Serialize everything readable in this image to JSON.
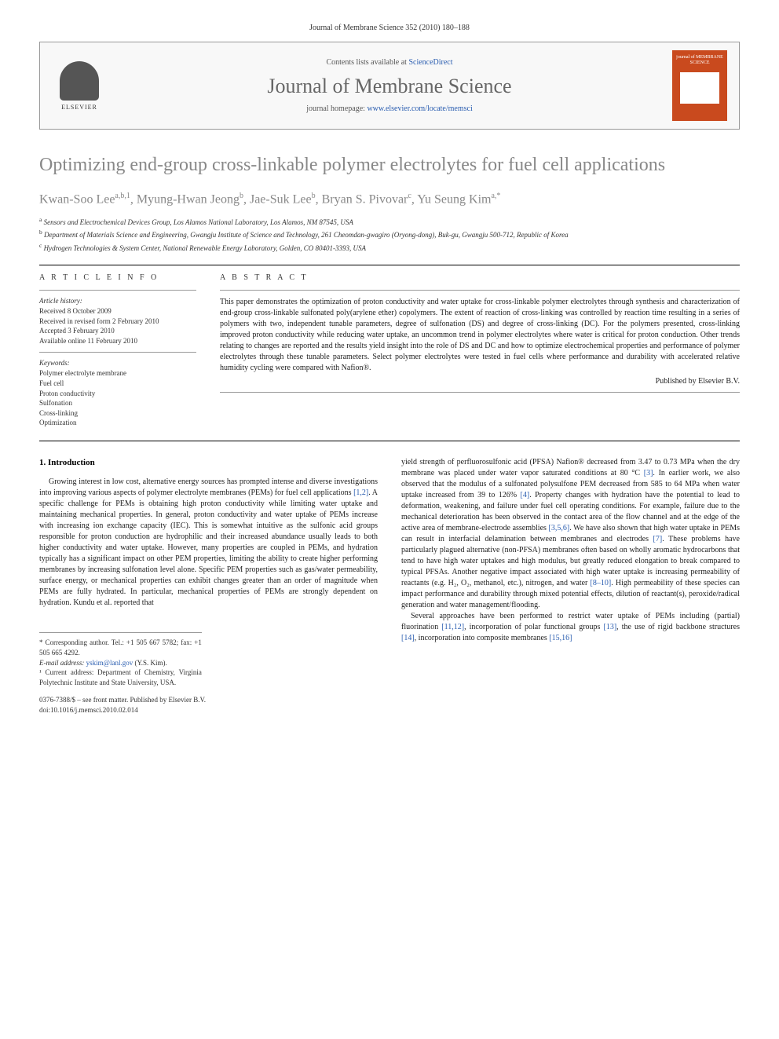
{
  "journal_header": "Journal of Membrane Science 352 (2010) 180–188",
  "header_box": {
    "contents_prefix": "Contents lists available at ",
    "contents_link": "ScienceDirect",
    "journal_title": "Journal of Membrane Science",
    "homepage_prefix": "journal homepage: ",
    "homepage_link": "www.elsevier.com/locate/memsci",
    "elsevier_label": "ELSEVIER",
    "cover_label": "journal of MEMBRANE SCIENCE"
  },
  "article": {
    "title": "Optimizing end-group cross-linkable polymer electrolytes for fuel cell applications",
    "authors_html": "Kwan-Soo Lee",
    "authors": [
      {
        "name": "Kwan-Soo Lee",
        "sup": "a,b,1"
      },
      {
        "name": "Myung-Hwan Jeong",
        "sup": "b"
      },
      {
        "name": "Jae-Suk Lee",
        "sup": "b"
      },
      {
        "name": "Bryan S. Pivovar",
        "sup": "c"
      },
      {
        "name": "Yu Seung Kim",
        "sup": "a,*"
      }
    ],
    "affiliations": [
      {
        "sup": "a",
        "text": "Sensors and Electrochemical Devices Group, Los Alamos National Laboratory, Los Alamos, NM 87545, USA"
      },
      {
        "sup": "b",
        "text": "Department of Materials Science and Engineering, Gwangju Institute of Science and Technology, 261 Cheomdan-gwagiro (Oryong-dong), Buk-gu, Gwangju 500-712, Republic of Korea"
      },
      {
        "sup": "c",
        "text": "Hydrogen Technologies & System Center, National Renewable Energy Laboratory, Golden, CO 80401-3393, USA"
      }
    ]
  },
  "article_info": {
    "heading": "A R T I C L E   I N F O",
    "history_label": "Article history:",
    "history": [
      "Received 8 October 2009",
      "Received in revised form 2 February 2010",
      "Accepted 3 February 2010",
      "Available online 11 February 2010"
    ],
    "keywords_label": "Keywords:",
    "keywords": [
      "Polymer electrolyte membrane",
      "Fuel cell",
      "Proton conductivity",
      "Sulfonation",
      "Cross-linking",
      "Optimization"
    ]
  },
  "abstract": {
    "heading": "A B S T R A C T",
    "text": "This paper demonstrates the optimization of proton conductivity and water uptake for cross-linkable polymer electrolytes through synthesis and characterization of end-group cross-linkable sulfonated poly(arylene ether) copolymers. The extent of reaction of cross-linking was controlled by reaction time resulting in a series of polymers with two, independent tunable parameters, degree of sulfonation (DS) and degree of cross-linking (DC). For the polymers presented, cross-linking improved proton conductivity while reducing water uptake, an uncommon trend in polymer electrolytes where water is critical for proton conduction. Other trends relating to changes are reported and the results yield insight into the role of DS and DC and how to optimize electrochemical properties and performance of polymer electrolytes through these tunable parameters. Select polymer electrolytes were tested in fuel cells where performance and durability with accelerated relative humidity cycling were compared with Nafion®.",
    "publisher": "Published by Elsevier B.V."
  },
  "body": {
    "section_heading": "1. Introduction",
    "col1_p1_a": "Growing interest in low cost, alternative energy sources has prompted intense and diverse investigations into improving various aspects of polymer electrolyte membranes (PEMs) for fuel cell applications ",
    "col1_p1_ref1": "[1,2]",
    "col1_p1_b": ". A specific challenge for PEMs is obtaining high proton conductivity while limiting water uptake and maintaining mechanical properties. In general, proton conductivity and water uptake of PEMs increase with increasing ion exchange capacity (IEC). This is somewhat intuitive as the sulfonic acid groups responsible for proton conduction are hydrophilic and their increased abundance usually leads to both higher conductivity and water uptake. However, many properties are coupled in PEMs, and hydration typically has a significant impact on other PEM properties, limiting the ability to create higher performing membranes by increasing sulfonation level alone. Specific PEM properties such as gas/water permeability, surface energy, or mechanical properties can exhibit changes greater than an order of magnitude when PEMs are fully hydrated. In particular, mechanical properties of PEMs are strongly dependent on hydration. Kundu et al. reported that",
    "col2_p1_a": "yield strength of perfluorosulfonic acid (PFSA) Nafion® decreased from 3.47 to 0.73 MPa when the dry membrane was placed under water vapor saturated conditions at 80 °C ",
    "col2_p1_ref1": "[3]",
    "col2_p1_b": ". In earlier work, we also observed that the modulus of a sulfonated polysulfone PEM decreased from 585 to 64 MPa when water uptake increased from 39 to 126% ",
    "col2_p1_ref2": "[4]",
    "col2_p1_c": ". Property changes with hydration have the potential to lead to deformation, weakening, and failure under fuel cell operating conditions. For example, failure due to the mechanical deterioration has been observed in the contact area of the flow channel and at the edge of the active area of membrane-electrode assemblies ",
    "col2_p1_ref3": "[3,5,6]",
    "col2_p1_d": ". We have also shown that high water uptake in PEMs can result in interfacial delamination between membranes and electrodes ",
    "col2_p1_ref4": "[7]",
    "col2_p1_e": ". These problems have particularly plagued alternative (non-PFSA) membranes often based on wholly aromatic hydrocarbons that tend to have high water uptakes and high modulus, but greatly reduced elongation to break compared to typical PFSAs. Another negative impact associated with high water uptake is increasing permeability of reactants (e.g. H₂, O₂, methanol, etc.), nitrogen, and water ",
    "col2_p1_ref5": "[8–10]",
    "col2_p1_f": ". High permeability of these species can impact performance and durability through mixed potential effects, dilution of reactant(s), peroxide/radical generation and water management/flooding.",
    "col2_p2_a": "Several approaches have been performed to restrict water uptake of PEMs including (partial) fluorination ",
    "col2_p2_ref1": "[11,12]",
    "col2_p2_b": ", incorporation of polar functional groups ",
    "col2_p2_ref2": "[13]",
    "col2_p2_c": ", the use of rigid backbone structures ",
    "col2_p2_ref3": "[14]",
    "col2_p2_d": ", incorporation into composite membranes ",
    "col2_p2_ref4": "[15,16]"
  },
  "footnotes": {
    "corresponding": "* Corresponding author. Tel.: +1 505 667 5782; fax: +1 505 665 4292.",
    "email_label": "E-mail address: ",
    "email": "yskim@lanl.gov",
    "email_suffix": " (Y.S. Kim).",
    "note1": "¹ Current address: Department of Chemistry, Virginia Polytechnic Institute and State University, USA."
  },
  "copyright": {
    "line1": "0376-7388/$ – see front matter. Published by Elsevier B.V.",
    "doi_label": "doi:",
    "doi": "10.1016/j.memsci.2010.02.014"
  },
  "colors": {
    "link": "#2a5db0",
    "title_gray": "#888888",
    "cover_orange": "#c94a1e"
  }
}
